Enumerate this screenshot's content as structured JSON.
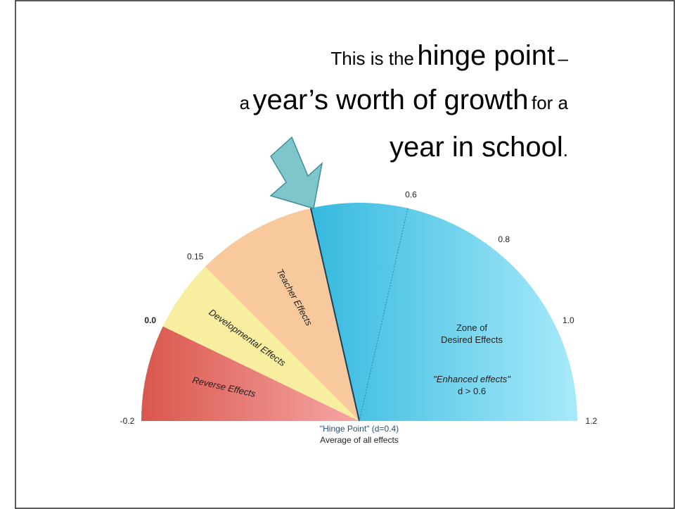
{
  "header": {
    "line1": [
      "This is the",
      "hinge point",
      "–"
    ],
    "line2": [
      "a",
      "year’s worth of growth",
      "for a"
    ],
    "line3": [
      "year in school",
      "."
    ]
  },
  "gauge": {
    "min": -0.2,
    "max": 1.2,
    "ticks": [
      -0.2,
      {
        "value": 0,
        "label": "0.0"
      },
      0.15,
      0.4,
      0.6,
      0.8,
      {
        "value": 1,
        "label": "1.0"
      },
      1.2
    ],
    "zones": [
      {
        "label": "Reverse Effects",
        "from": -0.2,
        "to": 0
      },
      {
        "label": "Developmental Effects",
        "from": 0,
        "to": 0.15
      },
      {
        "label": "Teacher Effects",
        "from": 0.15,
        "to": 0.4
      },
      {
        "label": [
          "Zone of",
          "Desired Effects"
        ],
        "from": 0.4,
        "to": 1.2
      }
    ],
    "enhanced": [
      "\"Enhanced effects\"",
      "d > 0.6"
    ],
    "hinge": [
      "\"Hinge Point\" (d=0.4)",
      "Average of all effects"
    ]
  }
}
